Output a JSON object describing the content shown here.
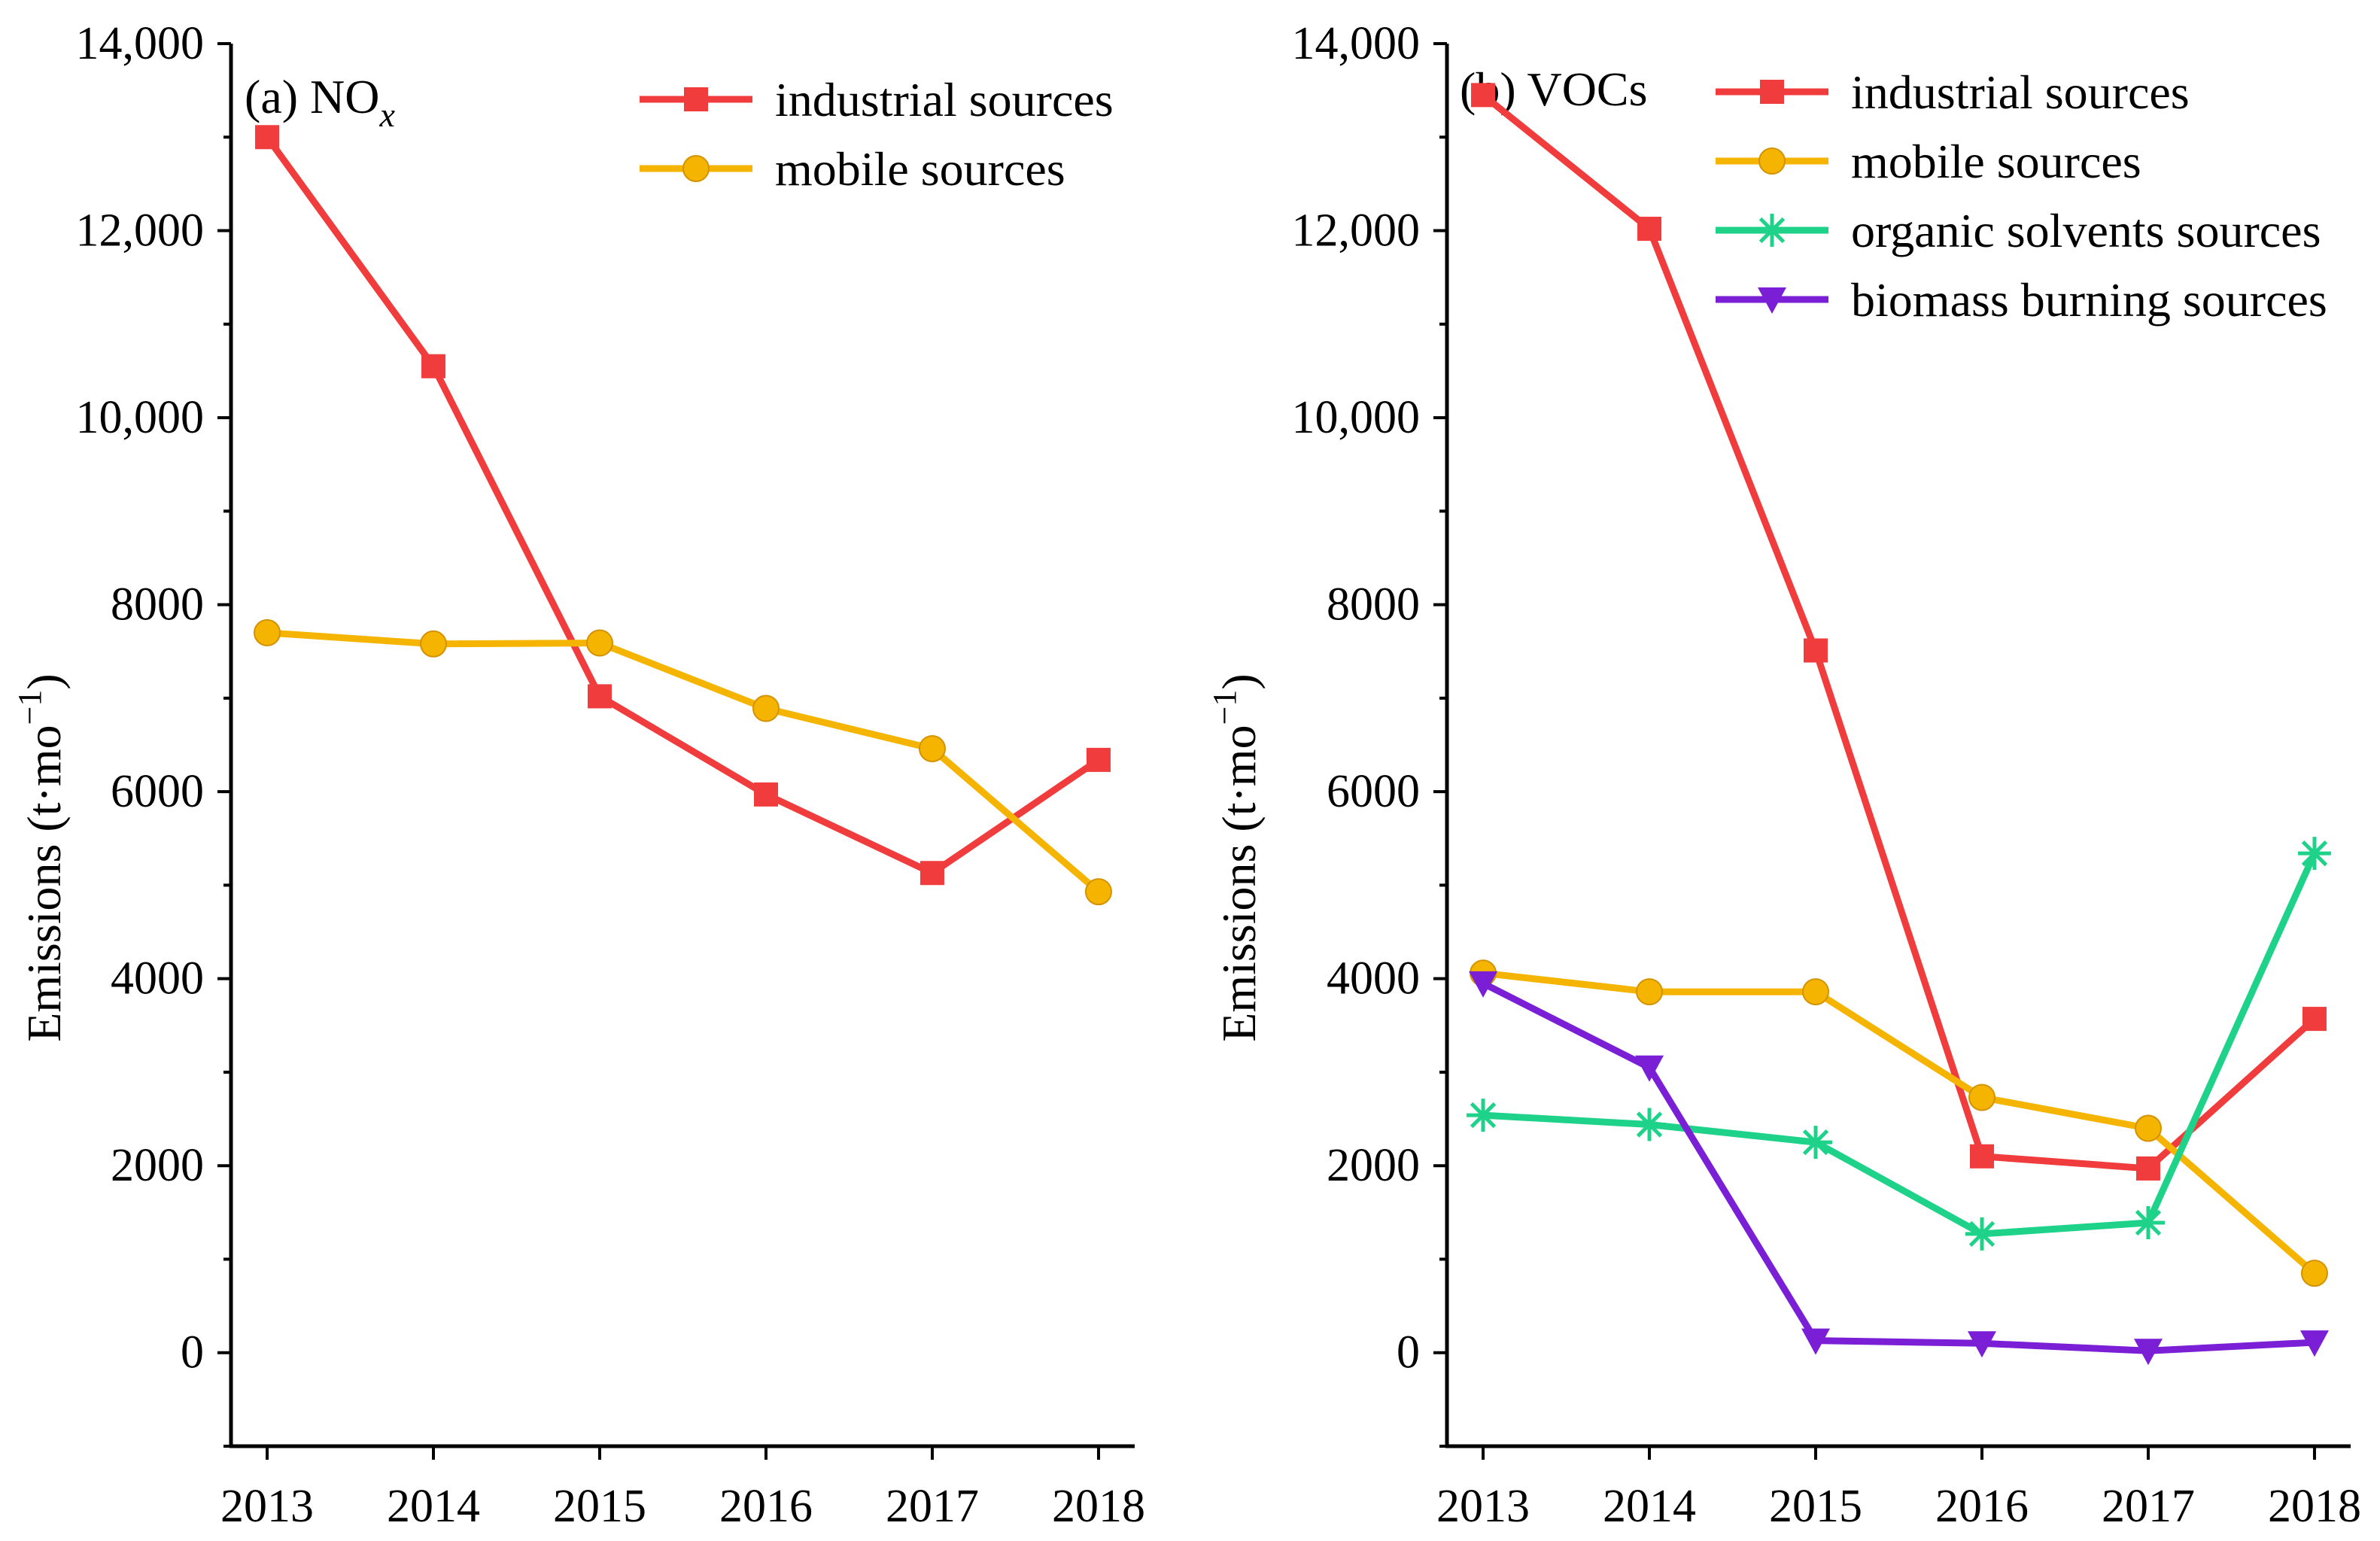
{
  "chart_data": [
    {
      "type": "line",
      "panel_label": "(a) NO",
      "panel_label_sub": "x",
      "ylabel": "Emissions (t·mo",
      "ylabel_sup": "−1",
      "ylabel_close": ")",
      "xlabel": "",
      "categories": [
        "2013",
        "2014",
        "2015",
        "2016",
        "2017",
        "2018"
      ],
      "ylim": [
        -1000,
        14000
      ],
      "yticks": [
        0,
        2000,
        4000,
        6000,
        8000,
        10000,
        12000,
        14000
      ],
      "ytick_labels": [
        "0",
        "2000",
        "4000",
        "6000",
        "8000",
        "10,000",
        "12,000",
        "14,000"
      ],
      "legend_position": "top-right",
      "series": [
        {
          "name": "industrial sources",
          "marker": "square",
          "color": "#f03c3c",
          "values": [
            13000,
            10550,
            7020,
            5970,
            5130,
            6340
          ]
        },
        {
          "name": "mobile sources",
          "marker": "circle",
          "color": "#f5b400",
          "values": [
            7700,
            7580,
            7590,
            6890,
            6460,
            4930
          ]
        }
      ]
    },
    {
      "type": "line",
      "panel_label": "(b) VOCs",
      "panel_label_sub": "",
      "ylabel": "Emissions (t·mo",
      "ylabel_sup": "−1",
      "ylabel_close": ")",
      "xlabel": "",
      "categories": [
        "2013",
        "2014",
        "2015",
        "2016",
        "2017",
        "2018"
      ],
      "ylim": [
        -1000,
        14000
      ],
      "yticks": [
        0,
        2000,
        4000,
        6000,
        8000,
        10000,
        12000,
        14000
      ],
      "ytick_labels": [
        "0",
        "2000",
        "4000",
        "6000",
        "8000",
        "10,000",
        "12,000",
        "14,000"
      ],
      "legend_position": "top-right",
      "series": [
        {
          "name": "industrial sources",
          "marker": "square",
          "color": "#f03c3c",
          "values": [
            13450,
            12020,
            7510,
            2100,
            1970,
            3570
          ]
        },
        {
          "name": "mobile sources",
          "marker": "circle",
          "color": "#f5b400",
          "values": [
            4060,
            3860,
            3860,
            2730,
            2400,
            850
          ]
        },
        {
          "name": "organic solvents sources",
          "marker": "asterisk",
          "color": "#1fd28a",
          "values": [
            2540,
            2440,
            2250,
            1270,
            1390,
            5340
          ]
        },
        {
          "name": "biomass burning sources",
          "marker": "triangle-down",
          "color": "#7a1fd6",
          "values": [
            3950,
            3050,
            130,
            100,
            20,
            110
          ]
        }
      ]
    }
  ]
}
